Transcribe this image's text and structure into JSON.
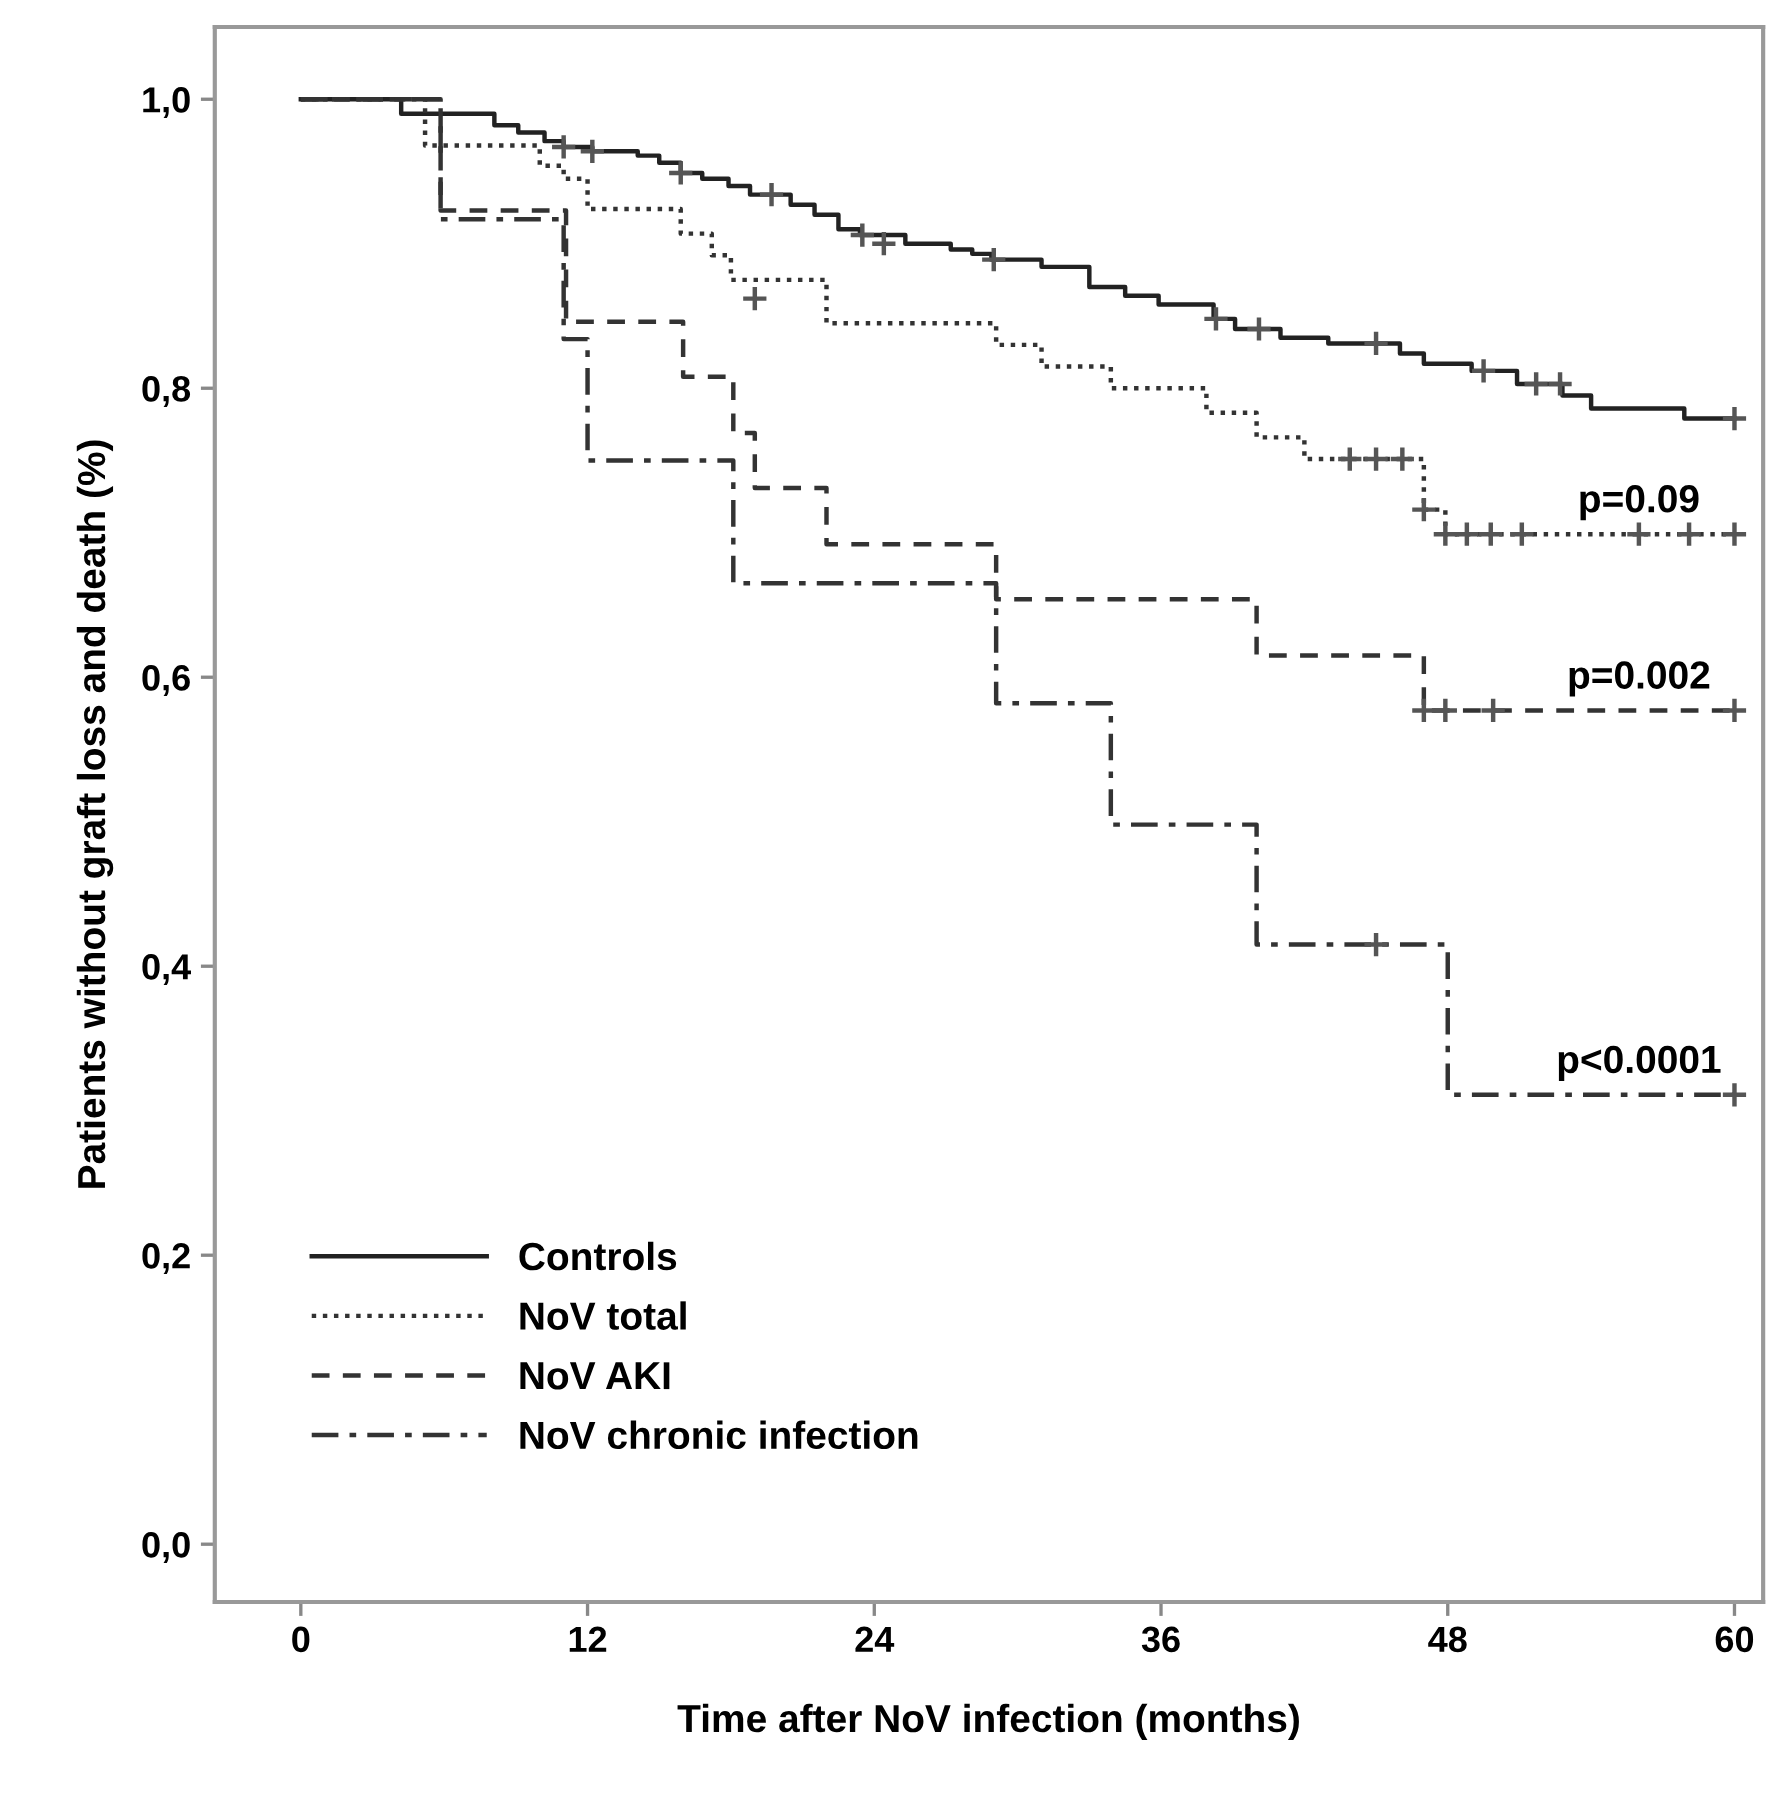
{
  "chart_data": {
    "type": "step",
    "xlabel": "Time after NoV infection (months)",
    "ylabel": "Patients without graft loss and death (%)",
    "xlim": [
      -3.6,
      61.2
    ],
    "ylim": [
      -0.04,
      1.05
    ],
    "xticks": [
      0,
      12,
      24,
      36,
      48,
      60
    ],
    "yticks": [
      {
        "value": 0.0,
        "label": "0,0"
      },
      {
        "value": 0.2,
        "label": "0,2"
      },
      {
        "value": 0.4,
        "label": "0,4"
      },
      {
        "value": 0.6,
        "label": "0,6"
      },
      {
        "value": 0.8,
        "label": "0,8"
      },
      {
        "value": 1.0,
        "label": "1,0"
      }
    ],
    "grid": false,
    "legend": "bottom left",
    "series": [
      {
        "name": "Controls",
        "color": "#222222",
        "line_style": "solid",
        "x": [
          0,
          4.2,
          8.1,
          9.1,
          10.2,
          11,
          12.2,
          14.1,
          15,
          15.9,
          16.8,
          17.9,
          18.8,
          20.5,
          21.5,
          22.5,
          23.4,
          25.3,
          27.2,
          28.1,
          28.9,
          31,
          33,
          34.5,
          35.9,
          38.2,
          39.1,
          41,
          43,
          46,
          47,
          49,
          50.9,
          52.8,
          54,
          57.9,
          60
        ],
        "values": [
          1.0,
          0.99,
          0.982,
          0.977,
          0.971,
          0.967,
          0.964,
          0.961,
          0.956,
          0.949,
          0.945,
          0.94,
          0.934,
          0.927,
          0.92,
          0.91,
          0.906,
          0.9,
          0.896,
          0.893,
          0.889,
          0.884,
          0.87,
          0.864,
          0.858,
          0.848,
          0.841,
          0.835,
          0.831,
          0.824,
          0.817,
          0.812,
          0.803,
          0.795,
          0.786,
          0.779,
          0.779
        ]
      },
      {
        "name": "NoV total",
        "color": "#333333",
        "line_style": "dotted",
        "x": [
          0,
          5.2,
          10,
          11,
          12,
          15.9,
          17.2,
          18,
          22,
          29.1,
          31,
          33.9,
          37.9,
          40,
          42,
          47,
          47.9,
          60
        ],
        "values": [
          1.0,
          0.968,
          0.954,
          0.945,
          0.924,
          0.907,
          0.892,
          0.875,
          0.845,
          0.83,
          0.815,
          0.8,
          0.783,
          0.766,
          0.751,
          0.716,
          0.699,
          0.699
        ]
      },
      {
        "name": "NoV AKI",
        "color": "#333333",
        "line_style": "dashed",
        "x": [
          0,
          5.85,
          11.1,
          16,
          18.1,
          19,
          22,
          29.1,
          40,
          47,
          60
        ],
        "values": [
          1.0,
          0.923,
          0.846,
          0.808,
          0.769,
          0.731,
          0.692,
          0.654,
          0.615,
          0.577,
          0.577
        ]
      },
      {
        "name": "NoV chronic infection",
        "color": "#333333",
        "line_style": "dashdot",
        "x": [
          0,
          5.85,
          11,
          12,
          18.1,
          29.1,
          33.9,
          40,
          48,
          60
        ],
        "values": [
          1.0,
          0.917,
          0.834,
          0.75,
          0.665,
          0.582,
          0.498,
          0.415,
          0.311,
          0.311
        ]
      },
      {
        "type": "scatter",
        "marker": "cross",
        "color": "#555555",
        "x": [
          11,
          12.2,
          15.9,
          19.7,
          23.5,
          24.4,
          29,
          38.3,
          40.1,
          45,
          49.5,
          51.7,
          52.7,
          60
        ],
        "values": [
          0.967,
          0.964,
          0.949,
          0.934,
          0.906,
          0.9,
          0.889,
          0.848,
          0.841,
          0.831,
          0.812,
          0.803,
          0.803,
          0.779
        ]
      },
      {
        "type": "scatter",
        "marker": "cross",
        "color": "#555555",
        "x": [
          19,
          43.9,
          45,
          46.1,
          47,
          47.9,
          48.8,
          49.8,
          51.1,
          56,
          58.1,
          60
        ],
        "values": [
          0.862,
          0.751,
          0.751,
          0.751,
          0.716,
          0.699,
          0.699,
          0.699,
          0.699,
          0.699,
          0.699,
          0.699
        ]
      },
      {
        "type": "scatter",
        "marker": "cross",
        "color": "#555555",
        "x": [
          47,
          47.9,
          49.9,
          60
        ],
        "values": [
          0.577,
          0.577,
          0.577,
          0.577
        ]
      },
      {
        "type": "scatter",
        "marker": "cross",
        "color": "#555555",
        "x": [
          45,
          60
        ],
        "values": [
          0.415,
          0.311
        ]
      }
    ],
    "annotations": [
      "p=0.09",
      "p=0.002",
      "p<0.0001"
    ]
  }
}
